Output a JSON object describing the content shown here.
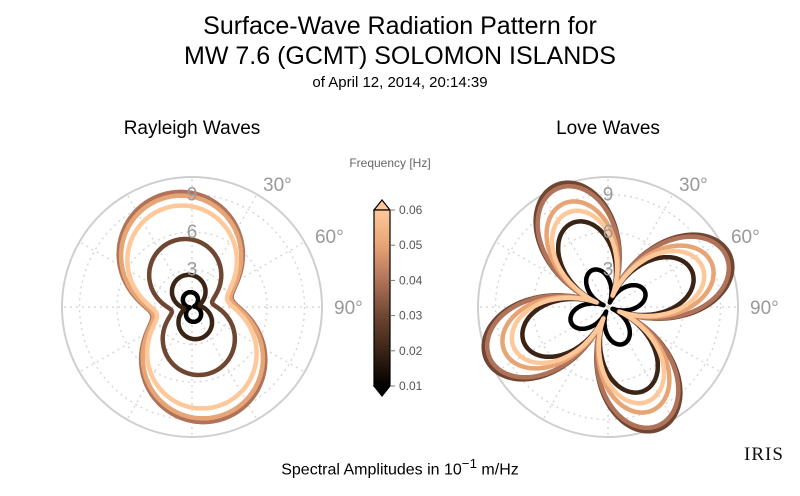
{
  "header": {
    "title_line1": "Surface-Wave Radiation Pattern for",
    "title_line2": "MW 7.6 (GCMT) SOLOMON ISLANDS",
    "subtitle": "of April 12, 2014, 20:14:39"
  },
  "footer": {
    "caption_prefix": "Spectral Amplitudes in ",
    "caption_power_base": "10",
    "caption_power_exp": "−1",
    "caption_suffix": " m/Hz"
  },
  "logo": {
    "text": "IRIS"
  },
  "colorbar": {
    "title": "Frequency [Hz]",
    "ticks": [
      "0.06",
      "0.05",
      "0.04",
      "0.03",
      "0.02",
      "0.01"
    ],
    "stops": [
      "#000000",
      "#3a2416",
      "#6f4632",
      "#b0735a",
      "#e7a474",
      "#ffc89a"
    ]
  },
  "chart_data": [
    {
      "type": "polar-line",
      "title": "Rayleigh Waves",
      "radial_ticks": [
        "3",
        "6",
        "9"
      ],
      "angle_ticks": [
        "30°",
        "60°",
        "90°"
      ],
      "rlim": [
        0,
        12
      ],
      "grid": true,
      "series": [
        {
          "frequency": 0.01,
          "color": "#000000",
          "pattern": "two_lobe",
          "max_amplitude": 1.2,
          "azimuth_deg": 168,
          "minor_ratio": 0.15
        },
        {
          "frequency": 0.02,
          "color": "#3a2416",
          "pattern": "two_lobe",
          "max_amplitude": 2.6,
          "azimuth_deg": 168,
          "minor_ratio": 0.25
        },
        {
          "frequency": 0.03,
          "color": "#6f4632",
          "pattern": "two_lobe",
          "max_amplitude": 5.5,
          "azimuth_deg": 168,
          "minor_ratio": 0.3
        },
        {
          "frequency": 0.04,
          "color": "#b0735a",
          "pattern": "two_lobe",
          "max_amplitude": 9.3,
          "azimuth_deg": 168,
          "minor_ratio": 0.35
        },
        {
          "frequency": 0.05,
          "color": "#e7a474",
          "pattern": "two_lobe",
          "max_amplitude": 9.0,
          "azimuth_deg": 168,
          "minor_ratio": 0.35
        },
        {
          "frequency": 0.06,
          "color": "#ffc89a",
          "pattern": "two_lobe",
          "max_amplitude": 8.2,
          "azimuth_deg": 168,
          "minor_ratio": 0.35
        }
      ]
    },
    {
      "type": "polar-line",
      "title": "Love Waves",
      "radial_ticks": [
        "3",
        "6",
        "9"
      ],
      "angle_ticks": [
        "30°",
        "60°",
        "90°"
      ],
      "rlim": [
        0,
        12
      ],
      "grid": true,
      "series": [
        {
          "frequency": 0.01,
          "color": "#000000",
          "pattern": "four_lobe",
          "max_amplitude": 3.2,
          "azimuth_deg": 22
        },
        {
          "frequency": 0.02,
          "color": "#3a2416",
          "pattern": "four_lobe",
          "max_amplitude": 7.3,
          "azimuth_deg": 22
        },
        {
          "frequency": 0.03,
          "color": "#6f4632",
          "pattern": "four_lobe",
          "max_amplitude": 10.6,
          "azimuth_deg": 22
        },
        {
          "frequency": 0.04,
          "color": "#b0735a",
          "pattern": "four_lobe",
          "max_amplitude": 10.3,
          "azimuth_deg": 22
        },
        {
          "frequency": 0.05,
          "color": "#e7a474",
          "pattern": "four_lobe",
          "max_amplitude": 9.0,
          "azimuth_deg": 22
        },
        {
          "frequency": 0.06,
          "color": "#ffc89a",
          "pattern": "four_lobe",
          "max_amplitude": 8.2,
          "azimuth_deg": 22
        }
      ]
    }
  ]
}
